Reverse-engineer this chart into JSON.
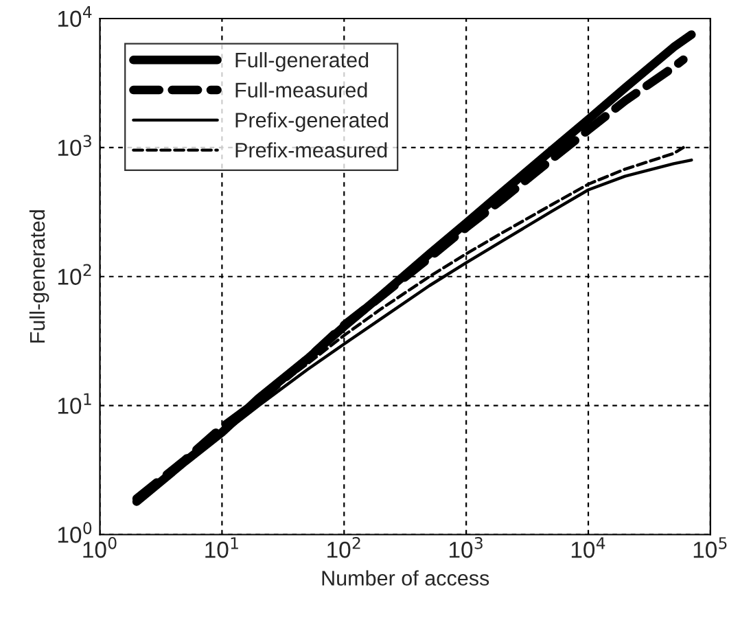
{
  "chart_data": {
    "type": "line",
    "xlabel": "Number of access",
    "ylabel": "Full-generated",
    "log": "xy",
    "grid": true,
    "legend": "top left",
    "marker": "none",
    "xlim": [
      1,
      100000
    ],
    "ylim": [
      1,
      10000
    ],
    "xticks": [
      {
        "value": 1,
        "label": "10$^{0}$"
      },
      {
        "value": 10,
        "label": "10$^{1}$"
      },
      {
        "value": 100,
        "label": "10$^{2}$"
      },
      {
        "value": 1000,
        "label": "10$^{3}$"
      },
      {
        "value": 10000,
        "label": "10$^{4}$"
      },
      {
        "value": 100000,
        "label": "10$^{5}$"
      }
    ],
    "yticks": [
      {
        "value": 1,
        "label": "10$^{0}$"
      },
      {
        "value": 10,
        "label": "10$^{1}$"
      },
      {
        "value": 100,
        "label": "10$^{2}$"
      },
      {
        "value": 1000,
        "label": "10$^{3}$"
      },
      {
        "value": 10000,
        "label": "10$^{4}$"
      }
    ],
    "series": [
      {
        "name": "Full-generated",
        "color": "#000000",
        "line_style": "solid",
        "x": [
          2,
          5,
          10,
          20,
          50,
          100,
          200,
          500,
          1000,
          2000,
          5000,
          10000,
          20000,
          50000,
          70000
        ],
        "values": [
          1.8,
          3.7,
          6.2,
          11.4,
          23,
          41,
          71,
          150,
          260,
          455,
          950,
          1650,
          2900,
          6000,
          7500
        ]
      },
      {
        "name": "Full-measured",
        "color": "#000000",
        "line_style": "dashed",
        "x": [
          2,
          5,
          10,
          20,
          50,
          100,
          200,
          500,
          1000,
          2000,
          5000,
          10000,
          20000,
          50000,
          60000
        ],
        "values": [
          1.9,
          3.8,
          6.8,
          11,
          23,
          42,
          70,
          140,
          240,
          400,
          810,
          1370,
          2300,
          4200,
          4800
        ]
      },
      {
        "name": "Prefix-generated",
        "color": "#000000",
        "line_style": "solid",
        "x": [
          2,
          5,
          10,
          20,
          50,
          100,
          200,
          500,
          1000,
          2000,
          5000,
          10000,
          20000,
          50000,
          70000
        ],
        "values": [
          1.8,
          3.6,
          6,
          10,
          19,
          30,
          47,
          85,
          128,
          190,
          320,
          470,
          600,
          750,
          800
        ]
      },
      {
        "name": "Prefix-measured",
        "color": "#000000",
        "line_style": "dashed",
        "x": [
          2,
          5,
          10,
          20,
          50,
          100,
          200,
          500,
          1000,
          2000,
          5000,
          10000,
          20000,
          50000,
          60000
        ],
        "values": [
          1.9,
          3.8,
          6.5,
          11,
          21,
          35,
          56,
          100,
          150,
          220,
          360,
          520,
          680,
          900,
          1000
        ]
      }
    ]
  }
}
